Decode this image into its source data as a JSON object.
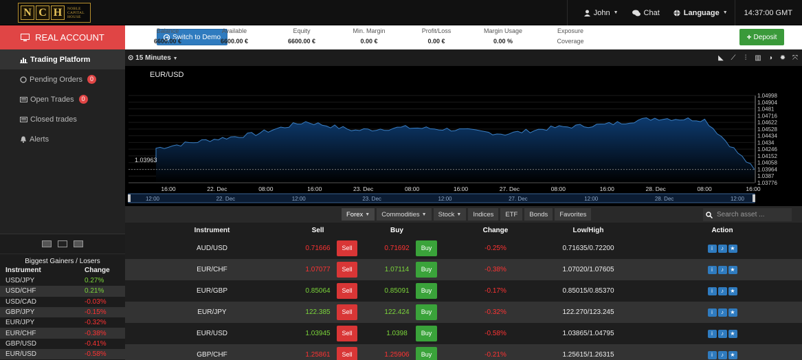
{
  "logo": {
    "letters": [
      "N",
      "C",
      "H"
    ],
    "subtitle_lines": [
      "NOBLE",
      "CAPITAL",
      "HOUSE"
    ]
  },
  "topbar": {
    "user": "John",
    "chat": "Chat",
    "language": "Language",
    "time": "14:37:00 GMT"
  },
  "account": {
    "label": "REAL ACCOUNT",
    "switch_label": "Switch to Demo",
    "deposit_label": "Deposit"
  },
  "stats": [
    {
      "label": "Balance",
      "value": "6600.00 €"
    },
    {
      "label": "Available",
      "value": "6600.00 €"
    },
    {
      "label": "Equity",
      "value": "6600.00 €"
    },
    {
      "label": "Min. Margin",
      "value": "0.00 €"
    },
    {
      "label": "Profit/Loss",
      "value": "0.00 €"
    },
    {
      "label": "Margin Usage",
      "value": "0.00 %"
    },
    {
      "label": "Exposure",
      "value": "Coverage"
    }
  ],
  "sidebar": {
    "items": [
      {
        "label": "Trading Platform",
        "icon": "bar-chart-icon",
        "badge": ""
      },
      {
        "label": "Pending Orders",
        "icon": "circle-icon",
        "badge": "0"
      },
      {
        "label": "Open Trades",
        "icon": "list-icon",
        "badge": "0"
      },
      {
        "label": "Closed trades",
        "icon": "list-icon",
        "badge": ""
      },
      {
        "label": "Alerts",
        "icon": "bell-icon",
        "badge": ""
      }
    ]
  },
  "gainers": {
    "title": "Biggest Gainers / Losers",
    "col_instrument": "Instrument",
    "col_change": "Change",
    "rows": [
      {
        "instrument": "USD/JPY",
        "change": "0.27%",
        "dir": "up"
      },
      {
        "instrument": "USD/CHF",
        "change": "0.21%",
        "dir": "up"
      },
      {
        "instrument": "USD/CAD",
        "change": "-0.03%",
        "dir": "down"
      },
      {
        "instrument": "GBP/JPY",
        "change": "-0.15%",
        "dir": "down"
      },
      {
        "instrument": "EUR/JPY",
        "change": "-0.32%",
        "dir": "down"
      },
      {
        "instrument": "EUR/CHF",
        "change": "-0.38%",
        "dir": "down"
      },
      {
        "instrument": "GBP/USD",
        "change": "-0.41%",
        "dir": "down"
      },
      {
        "instrument": "EUR/USD",
        "change": "-0.58%",
        "dir": "down"
      }
    ]
  },
  "chart": {
    "timeframe": "15 Minutes",
    "pair": "EUR/USD",
    "current_price": "1.03963",
    "y_ticks": [
      "1.04998",
      "1.04904",
      "1.0481",
      "1.04716",
      "1.04622",
      "1.04528",
      "1.04434",
      "1.0434",
      "1.04246",
      "1.04152",
      "1.04058",
      "1.03964",
      "1.0387",
      "1.03776"
    ],
    "x_ticks": [
      "16:00",
      "22. Dec",
      "08:00",
      "16:00",
      "23. Dec",
      "08:00",
      "16:00",
      "27. Dec",
      "08:00",
      "16:00",
      "28. Dec",
      "08:00",
      "16:00"
    ],
    "nav_ticks": [
      "12:00",
      "22. Dec",
      "12:00",
      "23. Dec",
      "12:00",
      "27. Dec",
      "12:00",
      "28. Dec",
      "12:00"
    ],
    "fill_color": "#0d3a6e",
    "line_color": "#3a7fc4"
  },
  "chart_data": {
    "type": "area",
    "title": "EUR/USD",
    "x": [
      "16:00",
      "22. Dec",
      "08:00",
      "16:00",
      "23. Dec",
      "08:00",
      "16:00",
      "27. Dec",
      "08:00",
      "16:00",
      "28. Dec",
      "08:00",
      "16:00"
    ],
    "series": [
      {
        "name": "EUR/USD",
        "values": [
          1.0426,
          1.0437,
          1.0446,
          1.0463,
          1.0451,
          1.0455,
          1.0452,
          1.0446,
          1.0455,
          1.0459,
          1.0468,
          1.0466,
          1.0396
        ]
      }
    ],
    "ylim": [
      1.03776,
      1.04998
    ]
  },
  "market": {
    "filters": [
      {
        "label": "Forex",
        "dropdown": true
      },
      {
        "label": "Commodities",
        "dropdown": true
      },
      {
        "label": "Stock",
        "dropdown": true
      },
      {
        "label": "Indices",
        "dropdown": false
      },
      {
        "label": "ETF",
        "dropdown": false
      },
      {
        "label": "Bonds",
        "dropdown": false
      },
      {
        "label": "Favorites",
        "dropdown": false
      }
    ],
    "search_placeholder": "Search asset ...",
    "columns": {
      "instrument": "Instrument",
      "sell": "Sell",
      "buy": "Buy",
      "change": "Change",
      "lowhigh": "Low/High",
      "action": "Action"
    },
    "sell_label": "Sell",
    "buy_label": "Buy",
    "rows": [
      {
        "instrument": "AUD/USD",
        "sell": "0.71666",
        "buy": "0.71692",
        "change": "-0.25%",
        "lowhigh": "0.71635/0.72200",
        "price_dir": "down"
      },
      {
        "instrument": "EUR/CHF",
        "sell": "1.07077",
        "buy": "1.07114",
        "change": "-0.38%",
        "lowhigh": "1.07020/1.07605",
        "price_dir": "mixed"
      },
      {
        "instrument": "EUR/GBP",
        "sell": "0.85064",
        "buy": "0.85091",
        "change": "-0.17%",
        "lowhigh": "0.85015/0.85370",
        "price_dir": "up"
      },
      {
        "instrument": "EUR/JPY",
        "sell": "122.385",
        "buy": "122.424",
        "change": "-0.32%",
        "lowhigh": "122.270/123.245",
        "price_dir": "up"
      },
      {
        "instrument": "EUR/USD",
        "sell": "1.03945",
        "buy": "1.0398",
        "change": "-0.58%",
        "lowhigh": "1.03865/1.04795",
        "price_dir": "up"
      },
      {
        "instrument": "GBP/CHF",
        "sell": "1.25861",
        "buy": "1.25906",
        "change": "-0.21%",
        "lowhigh": "1.25615/1.26315",
        "price_dir": "mixed"
      }
    ]
  }
}
